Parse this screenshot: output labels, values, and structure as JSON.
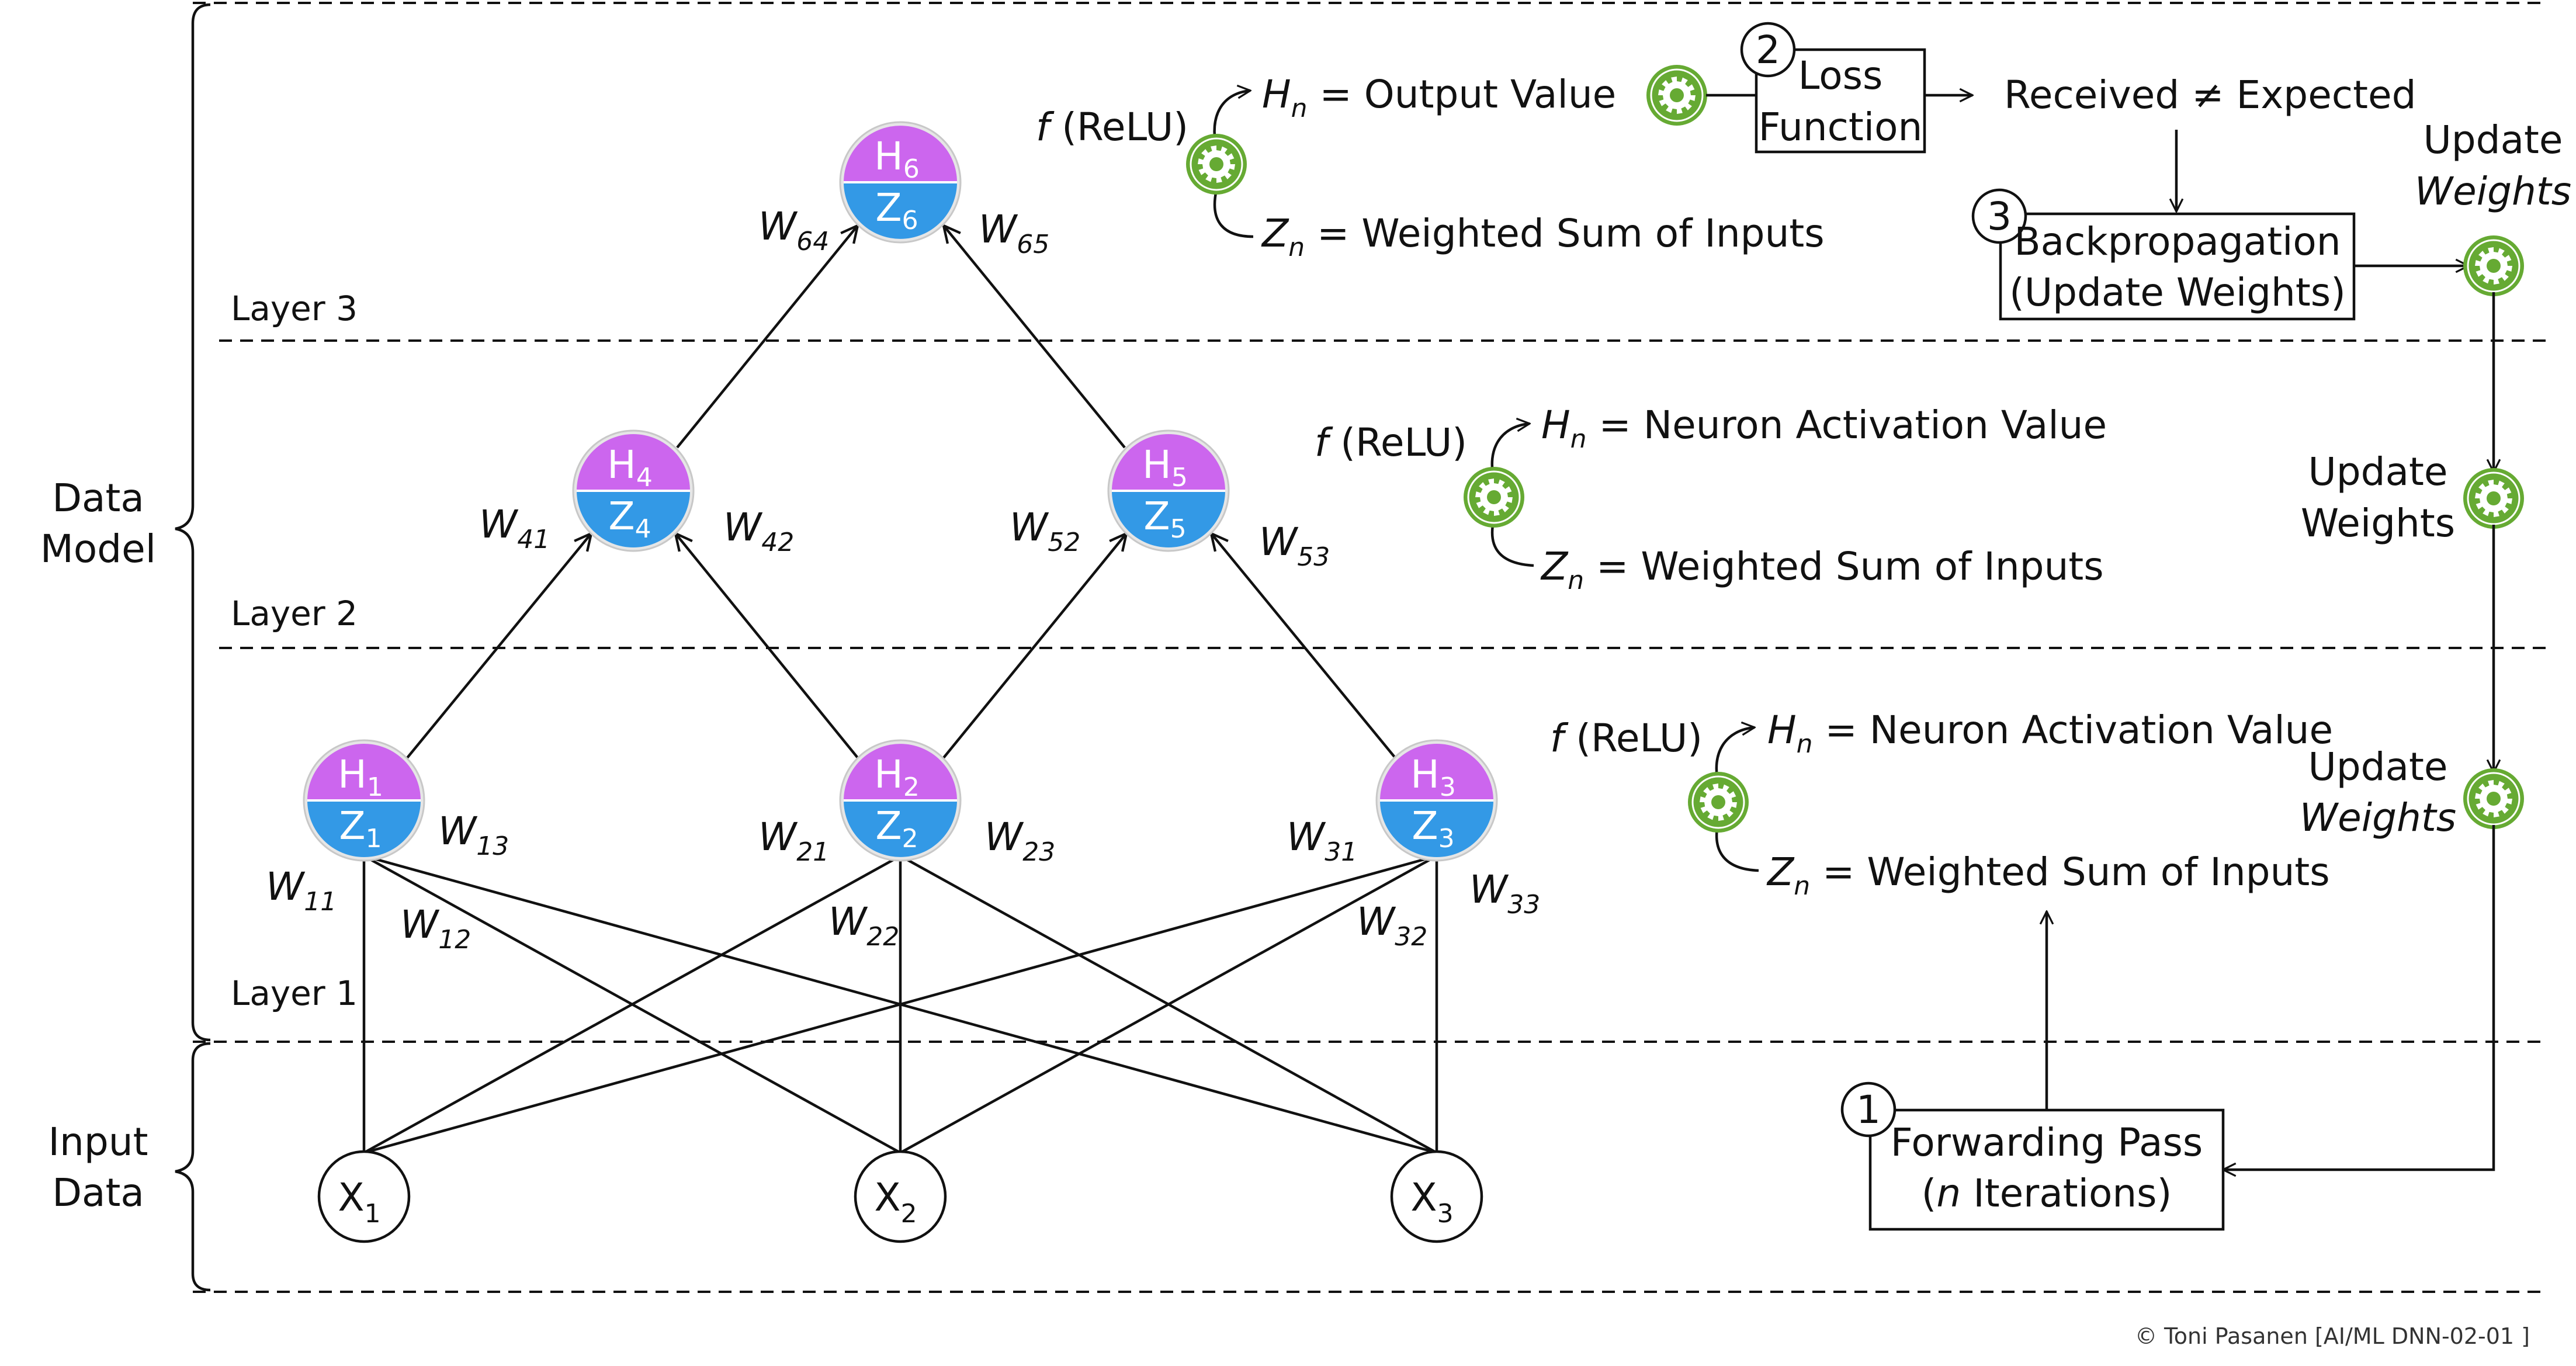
{
  "colors": {
    "neuron_top": "#cc66ee",
    "neuron_bottom": "#3399e6",
    "gear": "#66aa33",
    "gear_ring": "#ffffff",
    "line": "#111111"
  },
  "section_labels": {
    "data_model_1": "Data",
    "data_model_2": "Model",
    "input_data_1": "Input",
    "input_data_2": "Data"
  },
  "layer_labels": {
    "layer1": "Layer 1",
    "layer2": "Layer 2",
    "layer3": "Layer 3"
  },
  "inputs": [
    {
      "base": "X",
      "sub": "1"
    },
    {
      "base": "X",
      "sub": "2"
    },
    {
      "base": "X",
      "sub": "3"
    }
  ],
  "neurons": [
    {
      "h": "H",
      "h_sub": "1",
      "z": "Z",
      "z_sub": "1"
    },
    {
      "h": "H",
      "h_sub": "2",
      "z": "Z",
      "z_sub": "2"
    },
    {
      "h": "H",
      "h_sub": "3",
      "z": "Z",
      "z_sub": "3"
    },
    {
      "h": "H",
      "h_sub": "4",
      "z": "Z",
      "z_sub": "4"
    },
    {
      "h": "H",
      "h_sub": "5",
      "z": "Z",
      "z_sub": "5"
    },
    {
      "h": "H",
      "h_sub": "6",
      "z": "Z",
      "z_sub": "6"
    }
  ],
  "weights": [
    {
      "w": "W",
      "sub": "11"
    },
    {
      "w": "W",
      "sub": "12"
    },
    {
      "w": "W",
      "sub": "13"
    },
    {
      "w": "W",
      "sub": "21"
    },
    {
      "w": "W",
      "sub": "22"
    },
    {
      "w": "W",
      "sub": "23"
    },
    {
      "w": "W",
      "sub": "31"
    },
    {
      "w": "W",
      "sub": "32"
    },
    {
      "w": "W",
      "sub": "33"
    },
    {
      "w": "W",
      "sub": "41"
    },
    {
      "w": "W",
      "sub": "42"
    },
    {
      "w": "W",
      "sub": "52"
    },
    {
      "w": "W",
      "sub": "53"
    },
    {
      "w": "W",
      "sub": "64"
    },
    {
      "w": "W",
      "sub": "65"
    }
  ],
  "activations": {
    "layer3": {
      "f": "f",
      "relu": " (ReLU)",
      "h_var": "H",
      "h_sub": "n",
      "h_text": " = Output Value",
      "z_var": "Z",
      "z_sub": "n",
      "z_text": " = Weighted Sum of Inputs"
    },
    "layer2": {
      "f": "f",
      "relu": " (ReLU)",
      "h_var": "H",
      "h_sub": "n",
      "h_text": " = Neuron Activation Value",
      "z_var": "Z",
      "z_sub": "n",
      "z_text": " = Weighted Sum of Inputs"
    },
    "layer1": {
      "f": "f",
      "relu": " (ReLU)",
      "h_var": "H",
      "h_sub": "n",
      "h_text": " = Neuron Activation Value",
      "z_var": "Z",
      "z_sub": "n",
      "z_text": " = Weighted Sum of Inputs"
    }
  },
  "process": {
    "step1_num": "1",
    "forward_line1": "Forwarding Pass",
    "forward_line2_italic": "n",
    "forward_line2_rest": " Iterations)",
    "forward_line2_open": "(",
    "step2_num": "2",
    "loss_line1": "Loss",
    "loss_line2": "Function",
    "received": "Received ≠ Expected",
    "step3_num": "3",
    "backprop_line1": "Backpropagation",
    "backprop_line2": "(Update Weights)",
    "update_top_1": "Update",
    "update_top_2": "Weights",
    "update_mid_1": "Update",
    "update_mid_2": "Weights",
    "update_low_1": "Update",
    "update_low_2": "Weights"
  },
  "copyright": "© Toni Pasanen [AI/ML DNN-02-01 ]"
}
